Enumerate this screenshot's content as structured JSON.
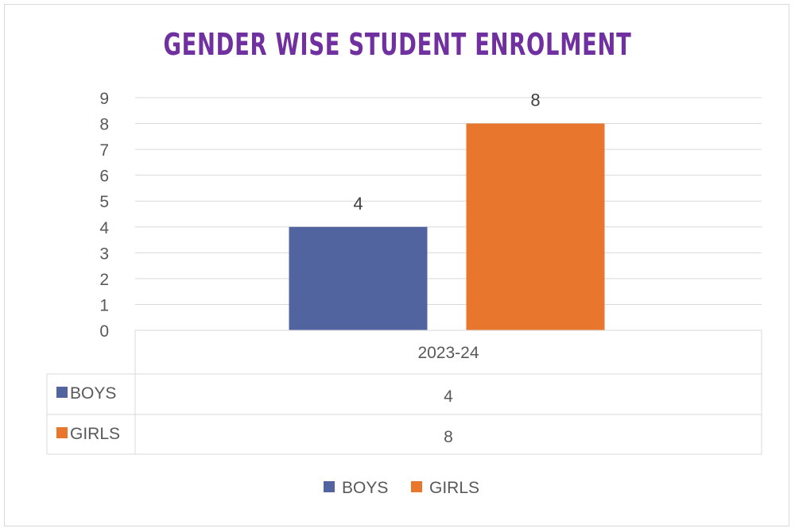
{
  "chart_data": {
    "type": "bar",
    "title": "GENDER WISE STUDENT ENROLMENT",
    "categories": [
      "2023-24"
    ],
    "series": [
      {
        "name": "BOYS",
        "values": [
          4
        ],
        "color": "#5264a0"
      },
      {
        "name": "GIRLS",
        "values": [
          8
        ],
        "color": "#e8762d"
      }
    ],
    "ylim": [
      0,
      9
    ],
    "yticks": [
      "0",
      "1",
      "2",
      "3",
      "4",
      "5",
      "6",
      "7",
      "8",
      "9"
    ],
    "grid": true,
    "data_table": true,
    "legend": "bottom",
    "xlabel": "",
    "ylabel": ""
  }
}
